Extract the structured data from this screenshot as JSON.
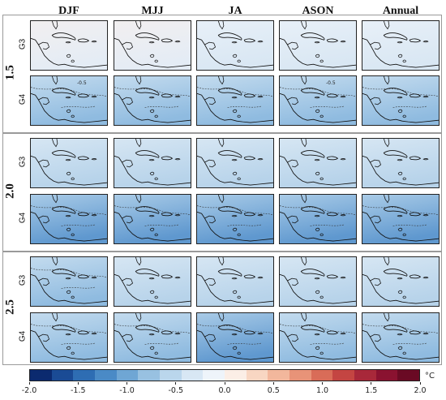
{
  "columns": [
    "DJF",
    "MJJ",
    "JA",
    "ASON",
    "Annual"
  ],
  "rows": [
    {
      "block": "1.5",
      "model": "G3",
      "fields": [
        "warm-neutral",
        "warm-neutral",
        "neutral",
        "neutral",
        "neutral"
      ],
      "contour_labels": []
    },
    {
      "block": "1.5",
      "model": "G4",
      "fields": [
        "cool-mid",
        "cool-mid",
        "cool-mid",
        "cool-mid",
        "cool-mid"
      ],
      "contour_labels": [
        "-0.5"
      ]
    },
    {
      "block": "2.0",
      "model": "G3",
      "fields": [
        "cool-light",
        "cool-light",
        "cool-light",
        "cool-light",
        "cool-light"
      ],
      "contour_labels": []
    },
    {
      "block": "2.0",
      "model": "G4",
      "fields": [
        "cool-strong",
        "cool-strong",
        "cool-strong",
        "cool-strong",
        "cool-strong"
      ],
      "contour_labels": []
    },
    {
      "block": "2.5",
      "model": "G3",
      "fields": [
        "cool-mid",
        "cool-light",
        "cool-light",
        "cool-light",
        "cool-light"
      ],
      "contour_labels": []
    },
    {
      "block": "2.5",
      "model": "G4",
      "fields": [
        "cool-mid",
        "cool-mid",
        "cool-strong",
        "cool-mid",
        "cool-mid"
      ],
      "contour_labels": []
    }
  ],
  "blocks": [
    "1.5",
    "2.0",
    "2.5"
  ],
  "colorbar": {
    "ticks": [
      "-2.0",
      "-1.5",
      "-1.0",
      "-0.5",
      "0.0",
      "0.5",
      "1.0",
      "1.5",
      "2.0"
    ],
    "unit": "°C",
    "colors": [
      "#0b2a6f",
      "#1a4b95",
      "#2e6db3",
      "#4a8ac6",
      "#6fa6d4",
      "#98c1e1",
      "#bad6ec",
      "#d8e7f4",
      "#eef4fa",
      "#fbeee6",
      "#f8d6c2",
      "#f2b79c",
      "#e89378",
      "#d96c58",
      "#c44542",
      "#a8283a",
      "#8a1230",
      "#6a0a24"
    ]
  },
  "field_colors": {
    "warm-neutral": [
      "#f2eff0",
      "#e4ecf5"
    ],
    "neutral": [
      "#e8f0f8",
      "#d9e7f3"
    ],
    "cool-light": [
      "#d6e6f3",
      "#b7d3ea"
    ],
    "cool-mid": [
      "#c3dbee",
      "#8fbbe0"
    ],
    "cool-strong": [
      "#a9cbe7",
      "#5f98cf"
    ]
  }
}
